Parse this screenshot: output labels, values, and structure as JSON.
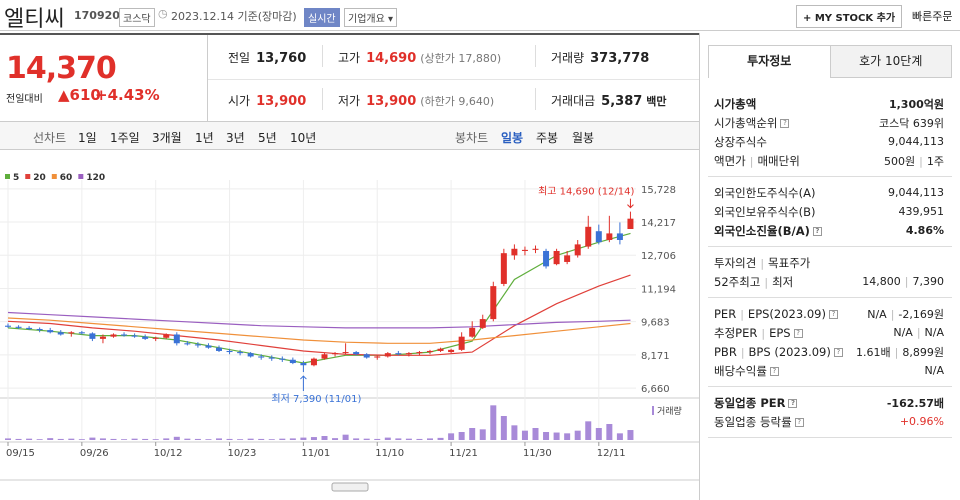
{
  "header": {
    "name": "엘티씨",
    "code": "170920",
    "market": "코스닥",
    "date": "2023.12.14 기준(장마감)",
    "realtime": "실시간",
    "overview": "기업개요",
    "my_stock": "+ MY STOCK 추가",
    "quick_order": "빠른주문"
  },
  "quote": {
    "price": "14,370",
    "change_label": "전일대비",
    "change": "▲610",
    "change_pct": "+4.43%",
    "rows": [
      [
        {
          "label": "전일",
          "value": "13,760"
        },
        {
          "label": "고가",
          "value": "14,690",
          "note": "(상한가 17,880)",
          "color": "#e0302a"
        },
        {
          "label": "거래량",
          "value": "373,778"
        }
      ],
      [
        {
          "label": "시가",
          "value": "13,900",
          "color": "#e0302a"
        },
        {
          "label": "저가",
          "value": "13,900",
          "note": "(하한가 9,640)",
          "color": "#e0302a"
        },
        {
          "label": "거래대금",
          "value": "5,387",
          "unit": "백만"
        }
      ]
    ]
  },
  "tabs": {
    "line_label": "선차트",
    "line_periods": [
      "1일",
      "1주일",
      "3개월",
      "1년",
      "3년",
      "5년",
      "10년"
    ],
    "candle_label": "봉차트",
    "candle_periods": [
      "일봉",
      "주봉",
      "월봉"
    ],
    "selected_candle": 0
  },
  "chart_data": {
    "type": "candlestick",
    "up_color": "#e0302a",
    "down_color": "#3a72d6",
    "volume_color": "#a88ad8",
    "categories": [
      "09/15",
      null,
      null,
      null,
      null,
      null,
      null,
      "09/26",
      null,
      null,
      null,
      null,
      null,
      null,
      "10/12",
      null,
      null,
      null,
      null,
      null,
      null,
      "10/23",
      null,
      null,
      null,
      null,
      null,
      null,
      "11/01",
      null,
      null,
      null,
      null,
      null,
      null,
      "11/10",
      null,
      null,
      null,
      null,
      null,
      null,
      "11/21",
      null,
      null,
      null,
      null,
      null,
      null,
      "11/30",
      null,
      null,
      null,
      null,
      null,
      null,
      "12/11",
      null,
      null,
      null
    ],
    "open": [
      9500,
      9450,
      9400,
      9350,
      9300,
      9200,
      9150,
      9200,
      9150,
      8900,
      9000,
      9100,
      9050,
      9000,
      8900,
      8950,
      9100,
      8700,
      8650,
      8600,
      8500,
      8350,
      8300,
      8250,
      8100,
      8050,
      8000,
      7950,
      7800,
      7700,
      8000,
      8200,
      8250,
      8300,
      8200,
      8050,
      8100,
      8250,
      8200,
      8250,
      8300,
      8350,
      8300,
      8400,
      9000,
      9400,
      9800,
      11400,
      12700,
      12900,
      12950,
      12900,
      12300,
      12400,
      12700,
      13100,
      13800,
      13400,
      13700,
      13900
    ],
    "high": [
      9600,
      9520,
      9480,
      9420,
      9400,
      9300,
      9250,
      9260,
      9200,
      9100,
      9150,
      9200,
      9150,
      9100,
      9000,
      9150,
      9200,
      8800,
      8750,
      8700,
      8600,
      8450,
      8400,
      8300,
      8200,
      8150,
      8100,
      8050,
      7900,
      8050,
      8250,
      8300,
      8700,
      8350,
      8250,
      8150,
      8300,
      8350,
      8300,
      8350,
      8400,
      8500,
      8450,
      9200,
      9700,
      10000,
      11500,
      13000,
      13200,
      13100,
      13150,
      13000,
      13000,
      12900,
      13400,
      14500,
      14100,
      14500,
      14200,
      14690
    ],
    "low": [
      9400,
      9350,
      9300,
      9200,
      9150,
      9050,
      9000,
      9100,
      8800,
      8700,
      8950,
      9000,
      8950,
      8850,
      8800,
      8900,
      8600,
      8600,
      8500,
      8450,
      8300,
      8200,
      8150,
      8050,
      7950,
      7900,
      7850,
      7750,
      7390,
      7650,
      7950,
      8100,
      8200,
      8150,
      8000,
      7950,
      8050,
      8150,
      8100,
      8150,
      8200,
      8300,
      8250,
      8350,
      8950,
      9350,
      9700,
      11300,
      12500,
      12700,
      12800,
      12100,
      12250,
      12300,
      12600,
      13000,
      13200,
      13300,
      13200,
      13900
    ],
    "close": [
      9450,
      9400,
      9350,
      9300,
      9200,
      9100,
      9200,
      9150,
      8900,
      9000,
      9100,
      9050,
      9000,
      8900,
      8950,
      9100,
      8700,
      8650,
      8600,
      8500,
      8350,
      8300,
      8250,
      8100,
      8050,
      8000,
      7950,
      7800,
      7700,
      8000,
      8200,
      8250,
      8300,
      8200,
      8050,
      8100,
      8250,
      8200,
      8250,
      8300,
      8350,
      8450,
      8400,
      9000,
      9400,
      9800,
      11300,
      12800,
      13000,
      12950,
      13000,
      12200,
      12900,
      12700,
      13200,
      14000,
      13300,
      13700,
      13400,
      14370
    ],
    "volume": [
      60000,
      40000,
      50000,
      30000,
      70000,
      40000,
      50000,
      30000,
      90000,
      60000,
      40000,
      30000,
      50000,
      40000,
      30000,
      60000,
      120000,
      50000,
      40000,
      30000,
      60000,
      40000,
      30000,
      50000,
      40000,
      30000,
      50000,
      60000,
      90000,
      110000,
      150000,
      70000,
      200000,
      60000,
      50000,
      40000,
      90000,
      60000,
      50000,
      40000,
      60000,
      80000,
      250000,
      300000,
      450000,
      400000,
      1300000,
      900000,
      550000,
      350000,
      450000,
      300000,
      280000,
      250000,
      350000,
      700000,
      450000,
      600000,
      250000,
      373778
    ],
    "volume_label": "거래량",
    "volume_lim": [
      0,
      1500000
    ],
    "ylim": [
      6300,
      16130
    ],
    "yticks": [
      {
        "value": 6660,
        "label": "6,660"
      },
      {
        "value": 8171,
        "label": "8,171"
      },
      {
        "value": 9683,
        "label": "9,683"
      },
      {
        "value": 11194,
        "label": "11,194"
      },
      {
        "value": 12706,
        "label": "12,706"
      },
      {
        "value": 14217,
        "label": "14,217"
      },
      {
        "value": 15728,
        "label": "15,728"
      }
    ],
    "grid": true,
    "series": [
      {
        "name": "5",
        "color": "#5fae3c",
        "x": [
          0,
          4,
          8,
          12,
          16,
          20,
          24,
          28,
          32,
          36,
          40,
          44,
          48,
          52,
          56,
          59
        ],
        "values": [
          9400,
          9250,
          9050,
          9050,
          8850,
          8500,
          8150,
          7800,
          8150,
          8150,
          8300,
          8800,
          11600,
          12700,
          13300,
          13700
        ]
      },
      {
        "name": "20",
        "color": "#e0403a",
        "x": [
          0,
          4,
          8,
          12,
          16,
          20,
          24,
          28,
          32,
          36,
          40,
          44,
          48,
          52,
          56,
          59
        ],
        "values": [
          9700,
          9600,
          9400,
          9250,
          9050,
          8850,
          8600,
          8350,
          8200,
          8150,
          8150,
          8300,
          9500,
          10500,
          11300,
          11800
        ]
      },
      {
        "name": "60",
        "color": "#f0903a",
        "x": [
          0,
          4,
          8,
          12,
          16,
          20,
          24,
          28,
          32,
          36,
          40,
          44,
          48,
          52,
          56,
          59
        ],
        "values": [
          9850,
          9750,
          9600,
          9450,
          9300,
          9150,
          9000,
          8850,
          8750,
          8700,
          8700,
          8850,
          9050,
          9250,
          9450,
          9600
        ]
      },
      {
        "name": "120",
        "color": "#9a5fc0",
        "x": [
          0,
          4,
          8,
          12,
          16,
          20,
          24,
          28,
          32,
          36,
          40,
          44,
          48,
          52,
          56,
          59
        ],
        "values": [
          10100,
          10000,
          9900,
          9800,
          9700,
          9600,
          9500,
          9450,
          9400,
          9400,
          9400,
          9450,
          9550,
          9650,
          9700,
          9750
        ]
      }
    ],
    "max_note": "최고 14,690 (12/14)",
    "min_note": "최저 7,390 (11/01)"
  },
  "side": {
    "tabs": [
      "투자정보",
      "호가 10단계"
    ],
    "sections": [
      [
        {
          "labels": [
            "시가총액"
          ],
          "values": [
            "1,300억원"
          ],
          "strong": true
        },
        {
          "labels": [
            "시가총액순위"
          ],
          "values": [
            "코스닥 639위"
          ],
          "help": true
        },
        {
          "labels": [
            "상장주식수"
          ],
          "values": [
            "9,044,113"
          ]
        },
        {
          "labels": [
            "액면가",
            "매매단위"
          ],
          "values": [
            "500원",
            "1주"
          ]
        }
      ],
      [
        {
          "labels": [
            "외국인한도주식수(A)"
          ],
          "values": [
            "9,044,113"
          ]
        },
        {
          "labels": [
            "외국인보유주식수(B)"
          ],
          "values": [
            "439,951"
          ]
        },
        {
          "labels": [
            "외국인소진율(B/A)"
          ],
          "values": [
            "4.86%"
          ],
          "strong": true,
          "help": true
        }
      ],
      [
        {
          "labels": [
            "투자의견",
            "목표주가"
          ],
          "values": []
        },
        {
          "labels": [
            "52주최고",
            "최저"
          ],
          "values": [
            "14,800",
            "7,390"
          ]
        }
      ],
      [
        {
          "labels": [
            "PER",
            "EPS(2023.09)"
          ],
          "values": [
            "N/A",
            "-2,169원"
          ],
          "help": true
        },
        {
          "labels": [
            "추정PER",
            "EPS"
          ],
          "values": [
            "N/A",
            "N/A"
          ],
          "help": true
        },
        {
          "labels": [
            "PBR",
            "BPS (2023.09)"
          ],
          "values": [
            "1.61배",
            "8,899원"
          ],
          "help": true
        },
        {
          "labels": [
            "배당수익률"
          ],
          "values": [
            "N/A"
          ],
          "help": true
        }
      ],
      [
        {
          "labels": [
            "동일업종 PER"
          ],
          "values": [
            "-162.57배"
          ],
          "strong": true,
          "help": true
        },
        {
          "labels": [
            "동일업종 등락률"
          ],
          "values": [
            "+0.96%"
          ],
          "help": true,
          "color": "#e0302a"
        }
      ]
    ]
  }
}
